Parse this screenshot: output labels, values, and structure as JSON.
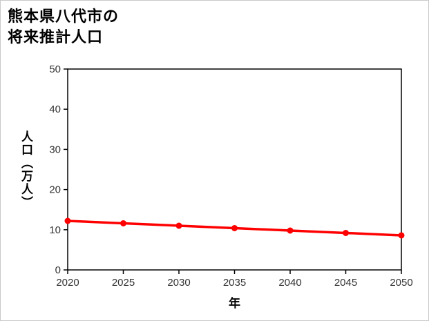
{
  "chart_data": {
    "type": "line",
    "title": "熊本県八代市の将来推計人口",
    "title_lines": [
      "熊本県八代市の",
      "将来推計人口"
    ],
    "xlabel": "年",
    "ylabel": "人口（万人）",
    "categories": [
      "2020",
      "2025",
      "2030",
      "2035",
      "2040",
      "2045",
      "2050"
    ],
    "series": [
      {
        "name": "将来推計人口",
        "values": [
          12.2,
          11.6,
          11.0,
          10.4,
          9.8,
          9.2,
          8.6
        ]
      }
    ],
    "ylim": [
      0,
      50
    ],
    "yticks": [
      0,
      10,
      20,
      30,
      40,
      50
    ],
    "grid": false,
    "legend": "none",
    "marker": "circle",
    "colors": {
      "line": "#ff0000",
      "marker": "#ff0000",
      "axis": "#000000",
      "tick_text": "#333333",
      "title_text": "#000000",
      "background": "#ffffff"
    }
  }
}
